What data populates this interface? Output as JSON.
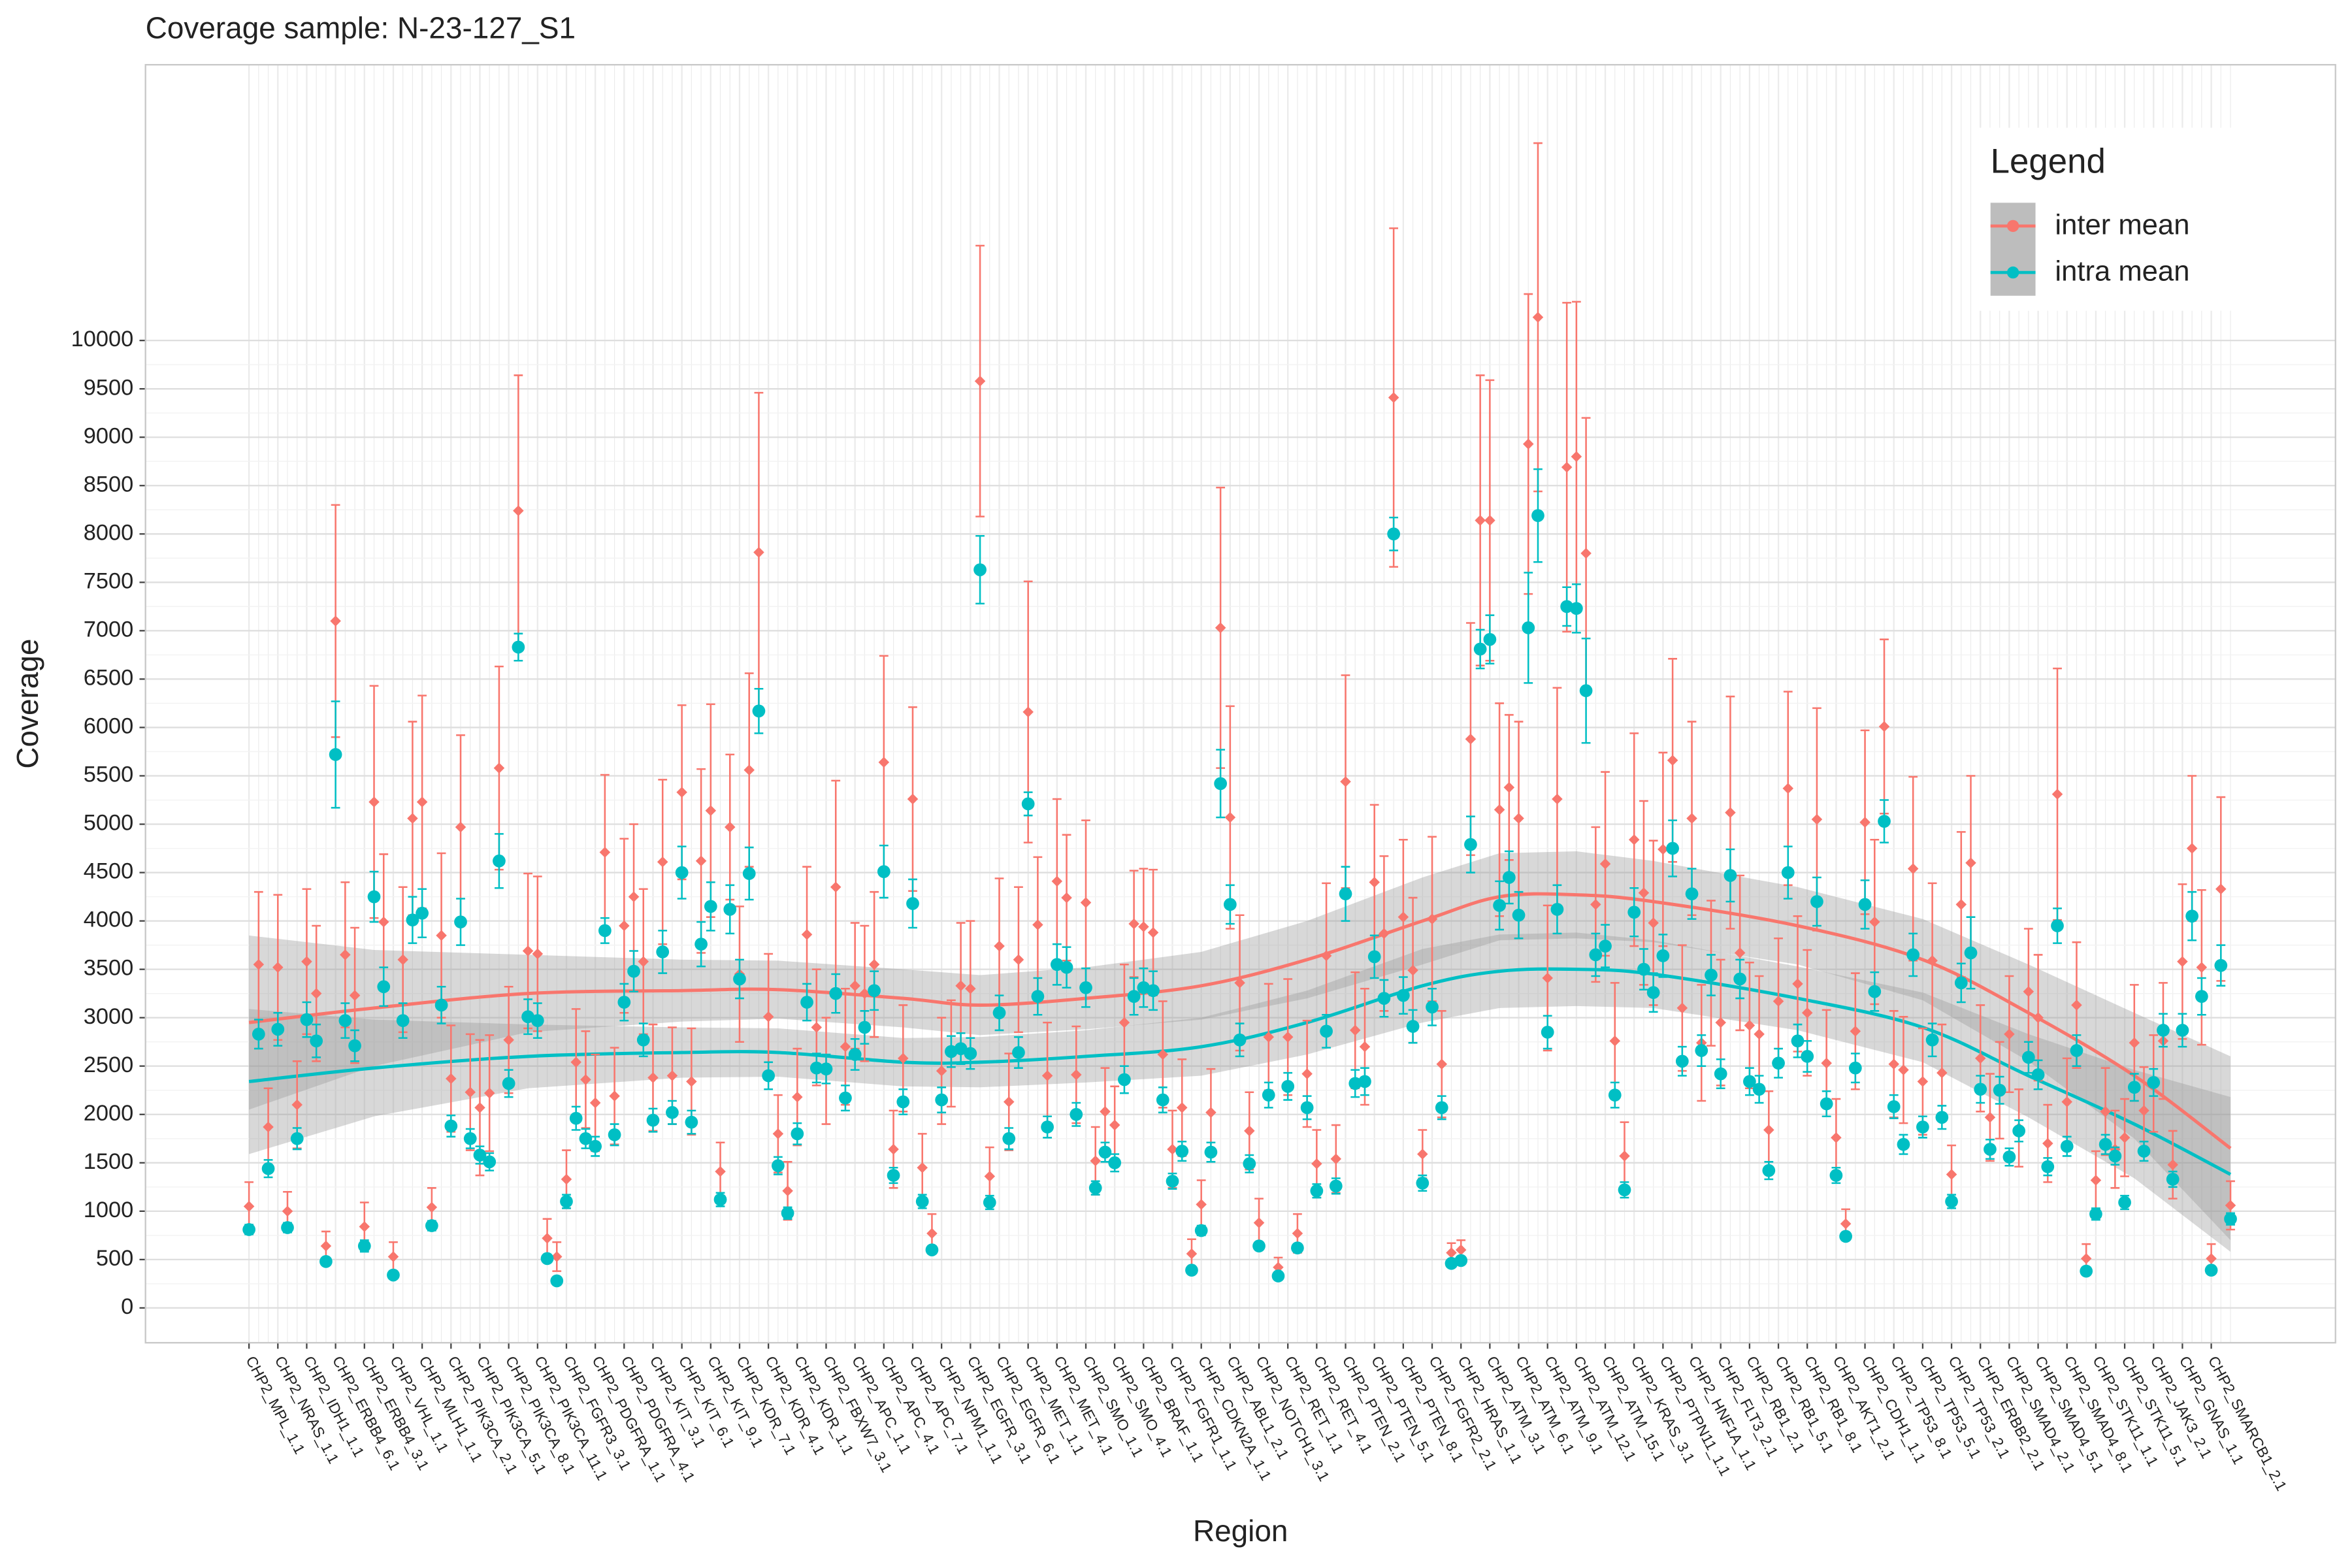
{
  "chart_data": {
    "type": "errorbar",
    "title": "Coverage sample: N-23-127_S1",
    "x_label": "Region",
    "y_label": "Coverage",
    "legend_title": "Legend",
    "legend_position": "top-right",
    "grid": true,
    "ylim": [
      -360,
      12850
    ],
    "yticks": [
      0,
      500,
      1000,
      1500,
      2000,
      2500,
      3000,
      3500,
      4000,
      4500,
      5000,
      5500,
      6000,
      6500,
      7000,
      7500,
      8000,
      8500,
      9000,
      9500,
      10000
    ],
    "categories": [
      "CHP2_MPL_1.1",
      null,
      null,
      "CHP2_NRAS_1.1",
      null,
      null,
      "CHP2_IDH1_1.1",
      null,
      null,
      "CHP2_ERBB4_6.1",
      null,
      null,
      "CHP2_ERBB4_3.1",
      null,
      null,
      "CHP2_VHL_1.1",
      null,
      null,
      "CHP2_MLH1_1.1",
      null,
      null,
      "CHP2_PIK3CA_2.1",
      null,
      null,
      "CHP2_PIK3CA_5.1",
      null,
      null,
      "CHP2_PIK3CA_8.1",
      null,
      null,
      "CHP2_PIK3CA_11.1",
      null,
      null,
      "CHP2_FGFR3_3.1",
      null,
      null,
      "CHP2_PDGFRA_1.1",
      null,
      null,
      "CHP2_PDGFRA_4.1",
      null,
      null,
      "CHP2_KIT_3.1",
      null,
      null,
      "CHP2_KIT_6.1",
      null,
      null,
      "CHP2_KIT_9.1",
      null,
      null,
      "CHP2_KDR_7.1",
      null,
      null,
      "CHP2_KDR_4.1",
      null,
      null,
      "CHP2_KDR_1.1",
      null,
      null,
      "CHP2_FBXW7_3.1",
      null,
      null,
      "CHP2_APC_1.1",
      null,
      null,
      "CHP2_APC_4.1",
      null,
      null,
      "CHP2_APC_7.1",
      null,
      null,
      "CHP2_NPM1_1.1",
      null,
      null,
      "CHP2_EGFR_3.1",
      null,
      null,
      "CHP2_EGFR_6.1",
      null,
      null,
      "CHP2_MET_1.1",
      null,
      null,
      "CHP2_MET_4.1",
      null,
      null,
      "CHP2_SMO_1.1",
      null,
      null,
      "CHP2_SMO_4.1",
      null,
      null,
      "CHP2_BRAF_1.1",
      null,
      null,
      "CHP2_FGFR1_1.1",
      null,
      null,
      "CHP2_CDKN2A_1.1",
      null,
      null,
      "CHP2_ABL1_2.1",
      null,
      null,
      "CHP2_NOTCH1_3.1",
      null,
      null,
      "CHP2_RET_1.1",
      null,
      null,
      "CHP2_RET_4.1",
      null,
      null,
      "CHP2_PTEN_2.1",
      null,
      null,
      "CHP2_PTEN_5.1",
      null,
      null,
      "CHP2_PTEN_8.1",
      null,
      null,
      "CHP2_FGFR2_2.1",
      null,
      null,
      "CHP2_HRAS_1.1",
      null,
      null,
      "CHP2_ATM_3.1",
      null,
      null,
      "CHP2_ATM_6.1",
      null,
      null,
      "CHP2_ATM_9.1",
      null,
      null,
      "CHP2_ATM_12.1",
      null,
      null,
      "CHP2_ATM_15.1",
      null,
      null,
      "CHP2_KRAS_3.1",
      null,
      null,
      "CHP2_PTPN11_1.1",
      null,
      null,
      "CHP2_HNF1A_1.1",
      null,
      null,
      "CHP2_FLT3_2.1",
      null,
      null,
      "CHP2_RB1_2.1",
      null,
      null,
      "CHP2_RB1_5.1",
      null,
      null,
      "CHP2_RB1_8.1",
      null,
      null,
      "CHP2_AKT1_2.1",
      null,
      null,
      "CHP2_CDH1_1.1",
      null,
      null,
      "CHP2_TP53_8.1",
      null,
      null,
      "CHP2_TP53_5.1",
      null,
      null,
      "CHP2_TP53_2.1",
      null,
      null,
      "CHP2_ERBB2_2.1",
      null,
      null,
      "CHP2_SMAD4_2.1",
      null,
      null,
      "CHP2_SMAD4_5.1",
      null,
      null,
      "CHP2_SMAD4_8.1",
      null,
      null,
      "CHP2_STK11_1.1",
      null,
      null,
      "CHP2_STK11_5.1",
      null,
      null,
      "CHP2_JAK3_2.1",
      null,
      null,
      "CHP2_GNAS_1.1",
      null,
      null,
      "CHP2_SMARCB1_2.1",
      null,
      null
    ],
    "series": [
      {
        "name": "inter mean",
        "color": "#F8766D",
        "marker": "diamond",
        "values": [
          1050,
          3550,
          1870,
          3520,
          1000,
          2100,
          3580,
          3250,
          640,
          7100,
          3650,
          3230,
          840,
          5230,
          3990,
          530,
          3600,
          5060,
          5230,
          1040,
          3850,
          2370,
          4970,
          2230,
          2070,
          2220,
          5580,
          2770,
          8240,
          3690,
          3660,
          720,
          530,
          1330,
          2540,
          2360,
          2120,
          4710,
          2190,
          3950,
          4250,
          3580,
          2380,
          4610,
          2400,
          5330,
          2340,
          4620,
          5140,
          1410,
          4970,
          3450,
          5560,
          7810,
          3010,
          1800,
          1210,
          2180,
          3860,
          2900,
          2450,
          4350,
          2700,
          3330,
          3250,
          3550,
          5640,
          1640,
          2580,
          5260,
          1450,
          770,
          2450,
          2630,
          3330,
          3300,
          9580,
          1360,
          3740,
          2130,
          3600,
          6160,
          3960,
          2400,
          4410,
          4240,
          2410,
          4190,
          1520,
          2030,
          1890,
          2950,
          3970,
          3940,
          3880,
          2620,
          1640,
          2070,
          560,
          1070,
          2020,
          7030,
          5070,
          3360,
          1830,
          880,
          2800,
          420,
          2800,
          770,
          2420,
          1490,
          3640,
          1540,
          5440,
          2870,
          2700,
          4400,
          3870,
          9410,
          4040,
          3490,
          1590,
          4020,
          2520,
          570,
          600,
          5880,
          8140,
          8140,
          5150,
          5380,
          5060,
          8930,
          10240,
          3410,
          5260,
          8690,
          8800,
          7800,
          4170,
          4590,
          2760,
          1570,
          4840,
          4290,
          3980,
          4740,
          5660,
          3100,
          5060,
          2740,
          3460,
          2950,
          5120,
          3670,
          2920,
          2830,
          1840,
          3170,
          5370,
          3350,
          3050,
          5050,
          2530,
          1760,
          870,
          2860,
          5020,
          3990,
          6010,
          2520,
          2460,
          4540,
          2340,
          3590,
          2430,
          1380,
          4170,
          4600,
          2580,
          1970,
          2250,
          2830,
          1860,
          3270,
          3000,
          1700,
          5310,
          2130,
          3130,
          510,
          1320,
          2030,
          1640,
          1760,
          2740,
          2040,
          2320,
          2760,
          1480,
          3580,
          4750,
          3520,
          510,
          4330,
          1060
        ],
        "errors": [
          250,
          750,
          400,
          750,
          200,
          450,
          750,
          700,
          150,
          1200,
          750,
          700,
          250,
          1200,
          700,
          150,
          750,
          1000,
          1100,
          200,
          850,
          550,
          950,
          600,
          700,
          600,
          1050,
          550,
          1400,
          800,
          800,
          200,
          150,
          300,
          550,
          500,
          500,
          800,
          500,
          900,
          750,
          750,
          550,
          850,
          500,
          900,
          550,
          950,
          1100,
          300,
          750,
          700,
          1000,
          1650,
          650,
          400,
          300,
          500,
          700,
          600,
          550,
          1100,
          600,
          650,
          700,
          750,
          1100,
          400,
          550,
          950,
          350,
          200,
          550,
          550,
          650,
          700,
          1400,
          300,
          700,
          500,
          750,
          1350,
          700,
          550,
          850,
          650,
          500,
          850,
          350,
          450,
          400,
          600,
          550,
          600,
          650,
          550,
          400,
          500,
          150,
          250,
          450,
          1450,
          1150,
          700,
          400,
          250,
          550,
          100,
          600,
          200,
          550,
          350,
          750,
          350,
          1100,
          600,
          600,
          800,
          800,
          1750,
          800,
          750,
          250,
          850,
          550,
          100,
          100,
          1200,
          1500,
          1450,
          1100,
          750,
          1000,
          1550,
          1800,
          750,
          1150,
          1700,
          1600,
          1400,
          800,
          950,
          600,
          350,
          1100,
          950,
          850,
          1000,
          1050,
          650,
          1000,
          600,
          750,
          650,
          1200,
          800,
          650,
          600,
          400,
          650,
          1000,
          700,
          650,
          1150,
          550,
          400,
          150,
          600,
          950,
          850,
          900,
          550,
          550,
          950,
          550,
          800,
          500,
          300,
          750,
          900,
          550,
          450,
          500,
          600,
          400,
          650,
          650,
          400,
          1300,
          450,
          650,
          150,
          300,
          450,
          400,
          400,
          600,
          450,
          500,
          600,
          350,
          800,
          750,
          800,
          150,
          950,
          250
        ],
        "fit": {
          "x": [
            0,
            13,
            29,
            45,
            55,
            68,
            76,
            87,
            99,
            110,
            122,
            130,
            138,
            146,
            161,
            174,
            185,
            196,
            206
          ],
          "values": [
            2950,
            3100,
            3250,
            3280,
            3290,
            3200,
            3130,
            3200,
            3330,
            3600,
            4000,
            4250,
            4270,
            4200,
            3950,
            3600,
            3050,
            2400,
            1650
          ],
          "lower": [
            2050,
            2500,
            2850,
            2960,
            2990,
            2900,
            2820,
            2880,
            2980,
            3200,
            3550,
            3800,
            3820,
            3780,
            3550,
            3180,
            2550,
            1750,
            700
          ],
          "upper": [
            3850,
            3700,
            3650,
            3600,
            3590,
            3500,
            3440,
            3520,
            3680,
            4000,
            4450,
            4700,
            4720,
            4620,
            4350,
            4020,
            3550,
            3050,
            2600
          ]
        }
      },
      {
        "name": "intra mean",
        "color": "#00BFC4",
        "marker": "circle",
        "values": [
          810,
          2830,
          1440,
          2880,
          830,
          1750,
          2980,
          2760,
          480,
          5720,
          2970,
          2710,
          640,
          4250,
          3320,
          340,
          2970,
          4010,
          4080,
          850,
          3130,
          1880,
          3990,
          1750,
          1580,
          1510,
          4620,
          2320,
          6830,
          3010,
          2970,
          510,
          280,
          1100,
          1960,
          1750,
          1670,
          3900,
          1790,
          3160,
          3480,
          2770,
          1940,
          3680,
          2020,
          4500,
          1920,
          3760,
          4150,
          1120,
          4120,
          3400,
          4490,
          6170,
          2400,
          1470,
          980,
          1800,
          3160,
          2480,
          2470,
          3250,
          2170,
          2620,
          2900,
          3280,
          4510,
          1370,
          2130,
          4180,
          1100,
          600,
          2150,
          2650,
          2680,
          2630,
          7630,
          1090,
          3050,
          1750,
          2640,
          5210,
          3220,
          1870,
          3550,
          3520,
          2000,
          3310,
          1240,
          1610,
          1500,
          2360,
          3220,
          3310,
          3280,
          2150,
          1310,
          1620,
          390,
          800,
          1610,
          5420,
          4170,
          2770,
          1490,
          640,
          2200,
          330,
          2290,
          620,
          2070,
          1210,
          2860,
          1260,
          4280,
          2320,
          2340,
          3630,
          3200,
          8000,
          3230,
          2910,
          1290,
          3110,
          2070,
          460,
          490,
          4790,
          6810,
          6910,
          4160,
          4450,
          4060,
          7030,
          8190,
          2850,
          4120,
          7250,
          7230,
          6380,
          3650,
          3740,
          2200,
          1220,
          4090,
          3500,
          3260,
          3640,
          4750,
          2550,
          4280,
          2660,
          3440,
          2420,
          4470,
          3400,
          2340,
          2260,
          1420,
          2530,
          4500,
          2760,
          2600,
          4200,
          2110,
          1370,
          740,
          2480,
          4170,
          3270,
          5030,
          2080,
          1690,
          3650,
          1870,
          2770,
          1970,
          1100,
          3360,
          3670,
          2260,
          1640,
          2250,
          1560,
          1830,
          2590,
          2410,
          1460,
          3950,
          1670,
          2660,
          380,
          970,
          1690,
          1570,
          1090,
          2280,
          1620,
          2330,
          2870,
          1330,
          2870,
          4050,
          3220,
          390,
          3540,
          920
        ],
        "errors": [
          50,
          150,
          90,
          170,
          50,
          110,
          180,
          170,
          30,
          550,
          180,
          160,
          60,
          260,
          200,
          30,
          180,
          240,
          250,
          50,
          190,
          110,
          240,
          100,
          90,
          90,
          280,
          140,
          140,
          180,
          180,
          30,
          30,
          70,
          120,
          100,
          100,
          130,
          110,
          190,
          210,
          170,
          120,
          220,
          120,
          270,
          120,
          230,
          250,
          70,
          250,
          200,
          270,
          230,
          140,
          90,
          60,
          110,
          190,
          150,
          150,
          200,
          130,
          160,
          170,
          200,
          270,
          80,
          130,
          250,
          70,
          40,
          130,
          160,
          160,
          160,
          350,
          70,
          180,
          110,
          160,
          120,
          190,
          110,
          210,
          210,
          120,
          200,
          70,
          100,
          90,
          140,
          190,
          200,
          200,
          130,
          80,
          100,
          30,
          50,
          100,
          350,
          200,
          170,
          90,
          40,
          130,
          30,
          140,
          40,
          120,
          70,
          170,
          80,
          280,
          140,
          140,
          220,
          190,
          170,
          190,
          170,
          80,
          190,
          120,
          30,
          40,
          290,
          200,
          250,
          250,
          270,
          240,
          570,
          480,
          170,
          250,
          200,
          250,
          540,
          220,
          220,
          130,
          80,
          250,
          210,
          200,
          220,
          290,
          150,
          260,
          160,
          210,
          150,
          270,
          200,
          140,
          140,
          90,
          150,
          270,
          170,
          160,
          250,
          130,
          80,
          40,
          150,
          250,
          200,
          220,
          120,
          100,
          220,
          110,
          170,
          120,
          70,
          200,
          370,
          140,
          100,
          140,
          90,
          110,
          160,
          150,
          90,
          180,
          100,
          160,
          30,
          60,
          100,
          90,
          70,
          140,
          100,
          140,
          170,
          80,
          170,
          250,
          190,
          30,
          210,
          60
        ],
        "fit": {
          "x": [
            0,
            13,
            29,
            45,
            55,
            68,
            76,
            87,
            99,
            110,
            122,
            130,
            138,
            146,
            161,
            174,
            185,
            196,
            206
          ],
          "values": [
            2340,
            2480,
            2600,
            2640,
            2640,
            2540,
            2540,
            2600,
            2700,
            2950,
            3330,
            3480,
            3500,
            3450,
            3200,
            2900,
            2400,
            1900,
            1380
          ],
          "lower": [
            1590,
            1980,
            2270,
            2380,
            2390,
            2290,
            2280,
            2330,
            2400,
            2620,
            2950,
            3100,
            3120,
            3100,
            2870,
            2540,
            1970,
            1340,
            580
          ],
          "upper": [
            3090,
            2980,
            2930,
            2900,
            2890,
            2790,
            2800,
            2870,
            3000,
            3280,
            3710,
            3860,
            3880,
            3800,
            3530,
            3260,
            2830,
            2460,
            2180
          ]
        }
      }
    ]
  }
}
